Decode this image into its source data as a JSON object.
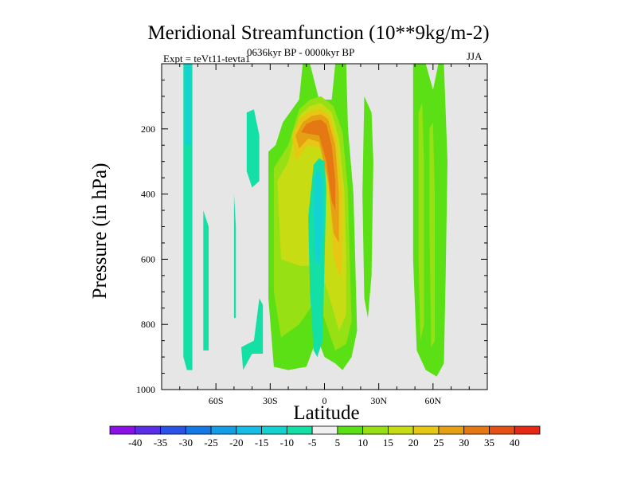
{
  "chart_data": {
    "type": "heatmap",
    "title": "Meridional Streamfunction (10**9kg/m-2)",
    "subtitle": "0636kyr BP - 0000kyr BP",
    "left_annotation": "Expt = teVt11-tevta1",
    "right_annotation": "JJA",
    "xlabel": "Latitude",
    "ylabel": "Pressure (in hPa)",
    "x_range": [
      -90,
      90
    ],
    "y_range": [
      0,
      1000
    ],
    "y_inverted": true,
    "x_ticks": [
      {
        "value": -60,
        "label": "60S"
      },
      {
        "value": -30,
        "label": "30S"
      },
      {
        "value": 0,
        "label": "0"
      },
      {
        "value": 30,
        "label": "30N"
      },
      {
        "value": 60,
        "label": "60N"
      }
    ],
    "y_ticks": [
      {
        "value": 200,
        "label": "200"
      },
      {
        "value": 400,
        "label": "400"
      },
      {
        "value": 600,
        "label": "600"
      },
      {
        "value": 800,
        "label": "800"
      },
      {
        "value": 1000,
        "label": "1000"
      }
    ],
    "background_color": "#e6e6e6",
    "colorbar": {
      "boundaries": [
        -40,
        -35,
        -30,
        -25,
        -20,
        -15,
        -10,
        -5,
        5,
        10,
        15,
        20,
        25,
        30,
        35,
        40
      ],
      "labels": [
        "-40",
        "-35",
        "-30",
        "-25",
        "-20",
        "-15",
        "-10",
        "-5",
        "5",
        "10",
        "15",
        "20",
        "25",
        "30",
        "35",
        "40"
      ],
      "colors": [
        "#8a10e6",
        "#5a2ee6",
        "#2a52e6",
        "#1478e6",
        "#149ee6",
        "#14bee6",
        "#14d2d2",
        "#14e0a6",
        "#f0f0f0",
        "#5ae014",
        "#96e014",
        "#c8dc14",
        "#e6c814",
        "#e6a014",
        "#e67814",
        "#e65014",
        "#e62814"
      ]
    },
    "regions": [
      {
        "level": -5,
        "polygon": [
          [
            -78,
            0
          ],
          [
            -73,
            0
          ],
          [
            -73,
            940
          ],
          [
            -76,
            940
          ],
          [
            -78,
            900
          ]
        ]
      },
      {
        "level": -10,
        "polygon": [
          [
            -77,
            0
          ],
          [
            -74,
            0
          ],
          [
            -74,
            250
          ],
          [
            -77,
            250
          ]
        ]
      },
      {
        "level": -5,
        "polygon": [
          [
            -67,
            450
          ],
          [
            -64,
            500
          ],
          [
            -64,
            880
          ],
          [
            -67,
            880
          ]
        ]
      },
      {
        "level": -5,
        "polygon": [
          [
            -50,
            400
          ],
          [
            -49,
            500
          ],
          [
            -49,
            780
          ],
          [
            -50,
            780
          ]
        ]
      },
      {
        "level": -5,
        "polygon": [
          [
            -43,
            150
          ],
          [
            -39,
            140
          ],
          [
            -36,
            220
          ],
          [
            -36,
            360
          ],
          [
            -40,
            380
          ],
          [
            -43,
            330
          ]
        ]
      },
      {
        "level": -5,
        "polygon": [
          [
            -46,
            870
          ],
          [
            -39,
            850
          ],
          [
            -36,
            720
          ],
          [
            -34,
            740
          ],
          [
            -34,
            890
          ],
          [
            -40,
            890
          ],
          [
            -45,
            940
          ]
        ]
      },
      {
        "level": 5,
        "polygon": [
          [
            -31,
            270
          ],
          [
            -27,
            250
          ],
          [
            -23,
            180
          ],
          [
            -14,
            110
          ],
          [
            -12,
            0
          ],
          [
            -8,
            0
          ],
          [
            -3,
            110
          ],
          [
            4,
            110
          ],
          [
            6,
            0
          ],
          [
            12,
            0
          ],
          [
            13,
            200
          ],
          [
            16,
            400
          ],
          [
            17,
            600
          ],
          [
            18,
            820
          ],
          [
            15,
            900
          ],
          [
            10,
            940
          ],
          [
            6,
            920
          ],
          [
            0,
            900
          ],
          [
            -4,
            840
          ],
          [
            -10,
            930
          ],
          [
            -20,
            940
          ],
          [
            -28,
            930
          ],
          [
            -31,
            720
          ]
        ]
      },
      {
        "level": 10,
        "polygon": [
          [
            -28,
            320
          ],
          [
            -20,
            250
          ],
          [
            -14,
            140
          ],
          [
            -8,
            110
          ],
          [
            -2,
            100
          ],
          [
            5,
            130
          ],
          [
            10,
            210
          ],
          [
            13,
            390
          ],
          [
            14,
            600
          ],
          [
            15,
            790
          ],
          [
            12,
            860
          ],
          [
            6,
            880
          ],
          [
            1,
            800
          ],
          [
            -4,
            720
          ],
          [
            -14,
            800
          ],
          [
            -24,
            840
          ],
          [
            -28,
            700
          ]
        ]
      },
      {
        "level": 15,
        "polygon": [
          [
            -26,
            360
          ],
          [
            -20,
            300
          ],
          [
            -14,
            160
          ],
          [
            -8,
            130
          ],
          [
            -2,
            120
          ],
          [
            4,
            150
          ],
          [
            8,
            230
          ],
          [
            11,
            390
          ],
          [
            12,
            590
          ],
          [
            12,
            770
          ],
          [
            8,
            820
          ],
          [
            3,
            720
          ],
          [
            -3,
            620
          ],
          [
            -14,
            620
          ],
          [
            -24,
            600
          ]
        ]
      },
      {
        "level": 20,
        "polygon": [
          [
            -18,
            220
          ],
          [
            -14,
            170
          ],
          [
            -8,
            145
          ],
          [
            -2,
            140
          ],
          [
            3,
            160
          ],
          [
            7,
            240
          ],
          [
            10,
            400
          ],
          [
            10,
            590
          ],
          [
            9,
            660
          ],
          [
            5,
            600
          ],
          [
            3,
            420
          ],
          [
            -2,
            260
          ],
          [
            -9,
            250
          ],
          [
            -16,
            300
          ]
        ]
      },
      {
        "level": 25,
        "polygon": [
          [
            -16,
            220
          ],
          [
            -12,
            180
          ],
          [
            -7,
            160
          ],
          [
            -2,
            155
          ],
          [
            2,
            170
          ],
          [
            6,
            250
          ],
          [
            8,
            400
          ],
          [
            8,
            550
          ],
          [
            5,
            520
          ],
          [
            2,
            360
          ],
          [
            -3,
            240
          ],
          [
            -9,
            230
          ],
          [
            -14,
            260
          ]
        ]
      },
      {
        "level": 30,
        "polygon": [
          [
            -13,
            210
          ],
          [
            -10,
            185
          ],
          [
            -6,
            175
          ],
          [
            -2,
            172
          ],
          [
            1,
            185
          ],
          [
            4,
            250
          ],
          [
            6,
            360
          ],
          [
            6,
            450
          ],
          [
            4,
            420
          ],
          [
            1,
            300
          ],
          [
            -3,
            220
          ],
          [
            -9,
            215
          ]
        ]
      },
      {
        "level": -5,
        "polygon": [
          [
            -6,
            310
          ],
          [
            -3,
            290
          ],
          [
            0,
            300
          ],
          [
            1,
            380
          ],
          [
            0,
            620
          ],
          [
            -1,
            850
          ],
          [
            -4,
            900
          ],
          [
            -6,
            880
          ],
          [
            -8,
            700
          ],
          [
            -9,
            470
          ]
        ]
      },
      {
        "level": -10,
        "polygon": [
          [
            -5,
            340
          ],
          [
            -3,
            320
          ],
          [
            -1,
            360
          ],
          [
            -1,
            520
          ],
          [
            -3,
            620
          ],
          [
            -5,
            600
          ],
          [
            -6,
            450
          ]
        ]
      },
      {
        "level": 5,
        "polygon": [
          [
            22,
            100
          ],
          [
            26,
            150
          ],
          [
            27,
            300
          ],
          [
            26,
            650
          ],
          [
            24,
            780
          ],
          [
            22,
            720
          ],
          [
            21,
            400
          ]
        ]
      },
      {
        "level": 5,
        "polygon": [
          [
            49,
            0
          ],
          [
            56,
            0
          ],
          [
            60,
            80
          ],
          [
            63,
            0
          ],
          [
            66,
            0
          ],
          [
            68,
            300
          ],
          [
            67,
            650
          ],
          [
            66,
            920
          ],
          [
            62,
            960
          ],
          [
            56,
            940
          ],
          [
            51,
            880
          ],
          [
            49,
            600
          ]
        ]
      },
      {
        "level": 10,
        "polygon": [
          [
            52,
            150
          ],
          [
            54,
            120
          ],
          [
            55,
            300
          ],
          [
            55,
            800
          ],
          [
            53,
            850
          ],
          [
            52,
            600
          ]
        ]
      },
      {
        "level": 10,
        "polygon": [
          [
            58,
            200
          ],
          [
            60,
            180
          ],
          [
            61,
            400
          ],
          [
            61,
            850
          ],
          [
            59,
            870
          ],
          [
            58,
            500
          ]
        ]
      }
    ]
  }
}
